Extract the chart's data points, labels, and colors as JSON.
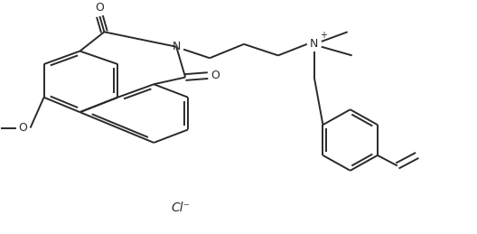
{
  "bg_color": "#ffffff",
  "line_color": "#2a2a2a",
  "line_width": 1.4,
  "fig_width": 5.28,
  "fig_height": 2.59,
  "dpi": 100,
  "atoms": {
    "O_top": "O",
    "O_bot": "O",
    "N_imide": "N",
    "N_quat": "N",
    "N_plus": "+",
    "O_methoxy": "O",
    "Cl": "Cl⁻"
  }
}
